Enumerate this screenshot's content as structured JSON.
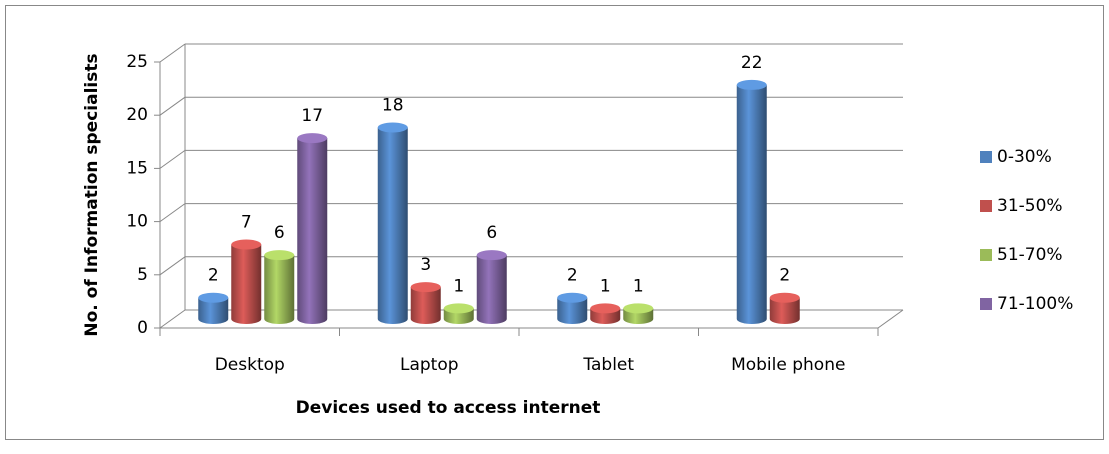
{
  "chart_data": {
    "type": "bar3d",
    "x_label": "Devices used to access internet",
    "y_label": "No. of Information specialists",
    "categories": [
      "Desktop",
      "Laptop",
      "Tablet",
      "Mobile phone"
    ],
    "series": [
      {
        "name": "0-30%",
        "color": "#4f81bd",
        "values": [
          2,
          18,
          2,
          22
        ]
      },
      {
        "name": "31-50%",
        "color": "#c0504d",
        "values": [
          7,
          3,
          1,
          2
        ]
      },
      {
        "name": "51-70%",
        "color": "#9bbb59",
        "values": [
          6,
          1,
          1,
          null
        ]
      },
      {
        "name": "71-100%",
        "color": "#8064a2",
        "values": [
          17,
          6,
          null,
          null
        ]
      }
    ],
    "ylim": [
      0,
      25
    ],
    "yticks": [
      0,
      5,
      10,
      15,
      20,
      25
    ],
    "grid": true,
    "legend": "right"
  }
}
